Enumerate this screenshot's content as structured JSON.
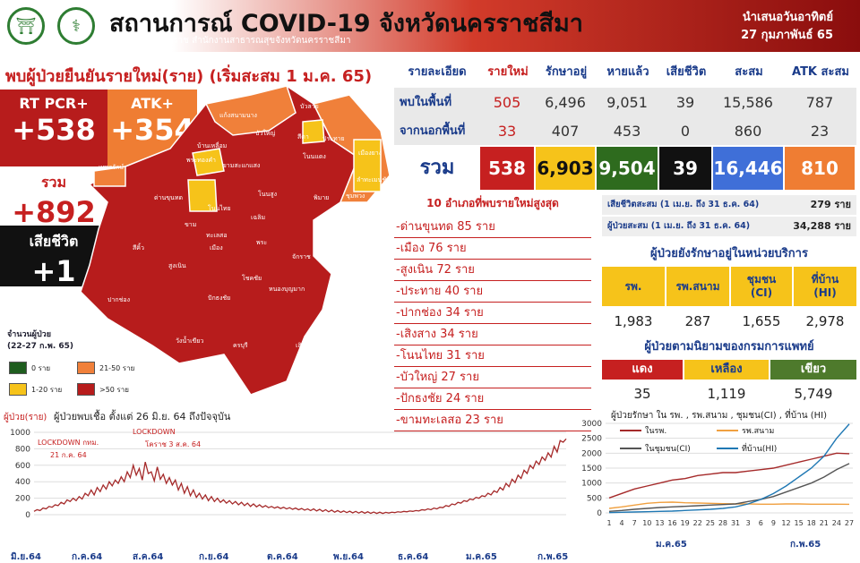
{
  "header": {
    "title": "สถานการณ์ COVID-19 จังหวัดนครราชสีมา",
    "subtitle": "ศูนย์โควิด19 โคราช สำนักงานสาธารณสุขจังหวัดนครราชสีมา",
    "day": "นำเสนอวันอาทิตย์",
    "date": "27 กุมภาพันธ์ 65"
  },
  "left": {
    "heading": "พบผู้ป่วยยืนยันรายใหม่(ราย) (เริ่มสะสม 1 ม.ค. 65)",
    "pcr_label": "RT PCR+",
    "pcr_value": "+538",
    "atk_label": "ATK+",
    "atk_value": "+354",
    "total_label": "รวม",
    "total_value": "+892",
    "death_label": "เสียชีวิต",
    "death_value": "+1"
  },
  "map": {
    "districts": [
      "แก้งสนามนาง",
      "บัวลาย",
      "บ้านเหลื่อม",
      "บัวใหญ่",
      "สีดา",
      "ประทาย",
      "เมืองยาง",
      "พระทองคำ",
      "ขามสะแกแสง",
      "โนนแดง",
      "ลำทะเมนชัย",
      "เทพารักษ์",
      "ด่านขุนทด",
      "โนนสูง",
      "พิมาย",
      "ชุมพวง",
      "ห้วยแถลง",
      "โนนไทย",
      "ขาม",
      "ทะเลสอ",
      "เมือง",
      "เฉลิม",
      "พระ",
      "จักราช",
      "สีคิ้ว",
      "สูงเนิน",
      "โชคชัย",
      "หนองบุญมาก",
      "ปักธงชัย",
      "ปากช่อง",
      "วังน้ำเขียว",
      "ครบุรี",
      "เสิงสาง"
    ],
    "legend_title": "จำนวนผู้ป่วย\n(22-27 ก.พ. 65)",
    "legend": [
      {
        "label": "0 ราย",
        "color": "#1e5d1e"
      },
      {
        "label": "21-50 ราย",
        "color": "#f0803a"
      },
      {
        "label": "1-20 ราย",
        "color": "#f6c31a"
      },
      {
        "label": ">50 ราย",
        "color": "#b71c1c"
      }
    ]
  },
  "table": {
    "headers": [
      "รายละเอียด",
      "รายใหม่",
      "รักษาอยู่",
      "หายแล้ว",
      "เสียชีวิต",
      "สะสม",
      "ATK สะสม"
    ],
    "rows": [
      {
        "label": "พบในพื้นที่",
        "values": [
          "505",
          "6,496",
          "9,051",
          "39",
          "15,586",
          "787"
        ]
      },
      {
        "label": "จากนอกพื้นที่",
        "values": [
          "33",
          "407",
          "453",
          "0",
          "860",
          "23"
        ]
      },
      {
        "label": "รวม",
        "values": [
          "538",
          "6,903",
          "9,504",
          "39",
          "16,446",
          "810"
        ]
      }
    ]
  },
  "top10": {
    "title": "10 อำเภอที่พบรายใหม่สูงสุด",
    "items": [
      "-ด่านขุนทด 85 ราย",
      "-เมือง 76 ราย",
      "-สูงเนิน 72 ราย",
      "-ประทาย 40 ราย",
      "-ปากช่อง 34 ราย",
      "-เสิงสาง 34 ราย",
      "-โนนไทย 31 ราย",
      "-บัวใหญ่ 27 ราย",
      "-ปักธงชัย 24 ราย",
      "-ขามทะเลสอ 23 ราย"
    ]
  },
  "cumulative": [
    {
      "label": "เสียชีวิตสะสม (1 เม.ย. ถึง 31 ธ.ค. 64)",
      "value": "279 ราย"
    },
    {
      "label": "ผู้ป่วยสะสม (1 เม.ย. ถึง 31 ธ.ค. 64)",
      "value": "34,288 ราย"
    }
  ],
  "service": {
    "title": "ผู้ป่วยยังรักษาอยู่ในหน่วยบริการ",
    "headers": [
      "รพ.",
      "รพ.สนาม",
      "ชุมชน\n(CI)",
      "ที่บ้าน\n(HI)"
    ],
    "values": [
      "1,983",
      "287",
      "1,655",
      "2,978"
    ]
  },
  "dms": {
    "title": "ผู้ป่วยตามนิยามของกรมการแพทย์",
    "headers": [
      "แดง",
      "เหลือง",
      "เขียว"
    ],
    "colors": [
      "#c62020",
      "#f6c31a",
      "#4e7a2c"
    ],
    "values": [
      "35",
      "1,119",
      "5,749"
    ]
  },
  "chart_data": [
    {
      "type": "line",
      "title": "ผู้ป่วยพบเชื้อ ตั้งแต่ 26 มิ.ย. 64 ถึงปัจจุบัน",
      "ylabel": "ผู้ป่วย(ราย)",
      "ylim": [
        0,
        1000
      ],
      "yticks": [
        0,
        200,
        400,
        600,
        800,
        1000
      ],
      "months": [
        "มิ.ย.64",
        "ก.ค.64",
        "ส.ค.64",
        "ก.ย.64",
        "ต.ค.64",
        "พ.ย.64",
        "ธ.ค.64",
        "ม.ค.65",
        "ก.พ.65"
      ],
      "annotations": [
        "LOCKDOWN กทม.\n21 ก.ค. 64",
        "LOCKDOWN\nโคราช 3 ส.ค. 64"
      ],
      "values": [
        40,
        60,
        50,
        80,
        70,
        100,
        90,
        120,
        110,
        150,
        130,
        180,
        160,
        200,
        170,
        220,
        190,
        260,
        230,
        300,
        240,
        330,
        280,
        360,
        310,
        400,
        350,
        420,
        380,
        460,
        400,
        520,
        450,
        600,
        480,
        560,
        420,
        640,
        500,
        520,
        410,
        580,
        430,
        490,
        380,
        450,
        360,
        420,
        300,
        380,
        260,
        340,
        230,
        300,
        210,
        260,
        190,
        240,
        170,
        220,
        160,
        200,
        150,
        180,
        140,
        170,
        130,
        160,
        120,
        150,
        110,
        140,
        100,
        130,
        95,
        120,
        90,
        110,
        85,
        100,
        80,
        95,
        75,
        90,
        70,
        85,
        65,
        80,
        60,
        75,
        55,
        70,
        50,
        70,
        45,
        65,
        40,
        60,
        35,
        55,
        30,
        50,
        28,
        45,
        25,
        42,
        22,
        40,
        20,
        38,
        18,
        35,
        16,
        32,
        15,
        30,
        15,
        28,
        20,
        30,
        25,
        35,
        30,
        40,
        35,
        45,
        40,
        50,
        45,
        60,
        55,
        70,
        60,
        80,
        70,
        90,
        85,
        110,
        100,
        130,
        120,
        150,
        140,
        170,
        160,
        190,
        180,
        210,
        200,
        230,
        220,
        260,
        240,
        290,
        270,
        330,
        300,
        380,
        340,
        430,
        390,
        480,
        440,
        540,
        500,
        600,
        560,
        650,
        610,
        700,
        660,
        750,
        700,
        830,
        760,
        900,
        880,
        920
      ]
    },
    {
      "type": "line",
      "title": "ผู้ป่วยรักษา ใน รพ. , รพ.สนาม , ชุมชน(CI) , ที่บ้าน (HI)",
      "ylim": [
        0,
        3000
      ],
      "yticks": [
        0,
        500,
        1000,
        1500,
        2000,
        2500,
        3000
      ],
      "x": [
        "1",
        "4",
        "7",
        "10",
        "13",
        "16",
        "19",
        "22",
        "25",
        "28",
        "31",
        "3",
        "6",
        "9",
        "12",
        "15",
        "18",
        "21",
        "24",
        "27"
      ],
      "months": [
        "ม.ค.65",
        "ก.พ.65"
      ],
      "series": [
        {
          "name": "ในรพ.",
          "color": "#a52a2a",
          "values": [
            500,
            650,
            800,
            900,
            1000,
            1100,
            1150,
            1250,
            1300,
            1350,
            1350,
            1400,
            1450,
            1500,
            1600,
            1700,
            1800,
            1900,
            2000,
            1983
          ]
        },
        {
          "name": "รพ.สนาม",
          "color": "#f0a040",
          "values": [
            150,
            200,
            260,
            320,
            350,
            360,
            340,
            330,
            320,
            310,
            300,
            300,
            290,
            290,
            300,
            300,
            290,
            290,
            290,
            287
          ]
        },
        {
          "name": "ในชุมชน(CI)",
          "color": "#555555",
          "values": [
            50,
            80,
            120,
            150,
            180,
            200,
            220,
            240,
            260,
            280,
            300,
            380,
            450,
            550,
            700,
            850,
            1000,
            1200,
            1450,
            1655
          ]
        },
        {
          "name": "ที่บ้าน(HI)",
          "color": "#1f78b4",
          "values": [
            10,
            20,
            30,
            40,
            50,
            60,
            80,
            100,
            120,
            150,
            200,
            300,
            450,
            650,
            900,
            1200,
            1500,
            1900,
            2500,
            2978
          ]
        }
      ]
    }
  ]
}
